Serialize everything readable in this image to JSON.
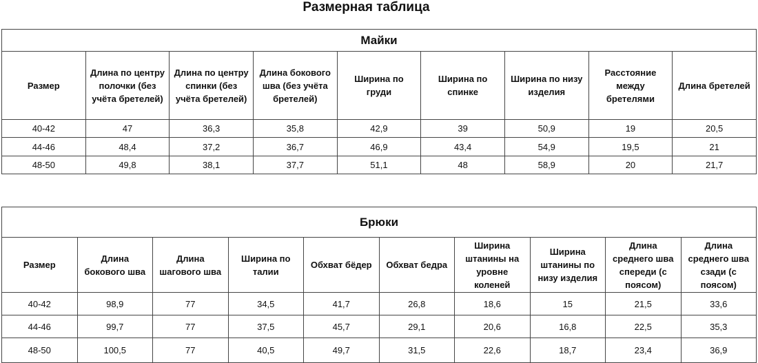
{
  "title": "Размерная таблица",
  "tables": [
    {
      "title": "Майки",
      "header": [
        "Размер",
        "Длина по центру полочки (без учёта бретелей)",
        "Длина по центру спинки (без учёта бретелей)",
        "Длина бокового шва (без учёта бретелей)",
        "Ширина по груди",
        "Ширина по спинке",
        "Ширина по низу изделия",
        "Расстояние между бретелями",
        "Длина бретелей"
      ],
      "rows": [
        [
          "40-42",
          "47",
          "36,3",
          "35,8",
          "42,9",
          "39",
          "50,9",
          "19",
          "20,5"
        ],
        [
          "44-46",
          "48,4",
          "37,2",
          "36,7",
          "46,9",
          "43,4",
          "54,9",
          "19,5",
          "21"
        ],
        [
          "48-50",
          "49,8",
          "38,1",
          "37,7",
          "51,1",
          "48",
          "58,9",
          "20",
          "21,7"
        ]
      ]
    },
    {
      "title": "Брюки",
      "header": [
        "Размер",
        "Длина бокового шва",
        "Длина шагового шва",
        "Ширина по талии",
        "Обхват бёдер",
        "Обхват бедра",
        "Ширина штанины на уровне коленей",
        "Ширина штанины по низу изделия",
        "Длина среднего шва спереди (с поясом)",
        "Длина среднего шва сзади (с поясом)"
      ],
      "rows": [
        [
          "40-42",
          "98,9",
          "77",
          "34,5",
          "41,7",
          "26,8",
          "18,6",
          "15",
          "21,5",
          "33,6"
        ],
        [
          "44-46",
          "99,7",
          "77",
          "37,5",
          "45,7",
          "29,1",
          "20,6",
          "16,8",
          "22,5",
          "35,3"
        ],
        [
          "48-50",
          "100,5",
          "77",
          "40,5",
          "49,7",
          "31,5",
          "22,6",
          "18,7",
          "23,4",
          "36,9"
        ]
      ]
    }
  ]
}
